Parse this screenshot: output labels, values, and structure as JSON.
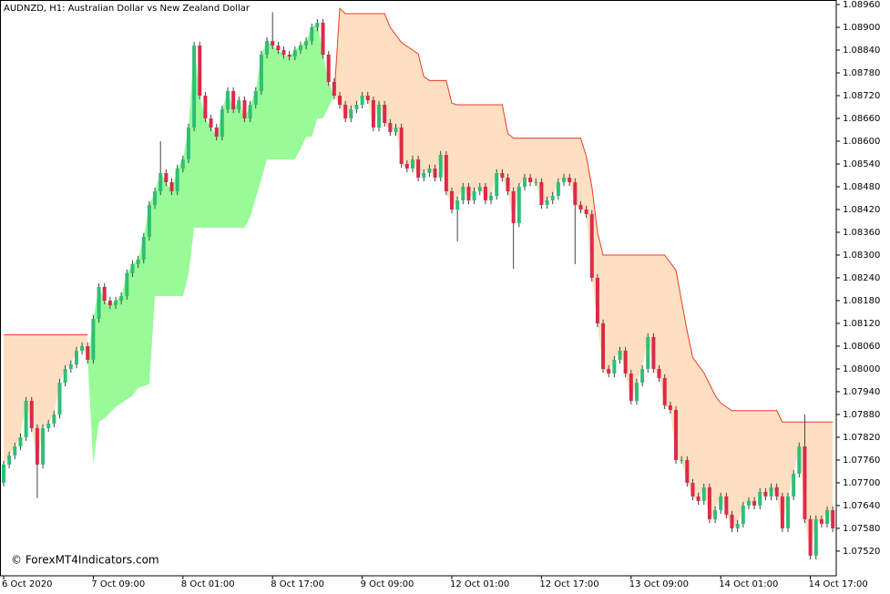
{
  "chart_data": {
    "type": "candlestick",
    "title": "AUDNZD, H1:  Australian Dollar vs New Zealand Dollar",
    "watermark": "© ForexMT4Indicators.com",
    "categories": [
      "6 Oct 2020",
      null,
      null,
      null,
      null,
      null,
      null,
      null,
      null,
      null,
      null,
      null,
      null,
      null,
      null,
      null,
      "7 Oct 09:00",
      null,
      null,
      null,
      null,
      null,
      null,
      null,
      null,
      null,
      null,
      null,
      null,
      null,
      null,
      null,
      "8 Oct 01:00",
      null,
      null,
      null,
      null,
      null,
      null,
      null,
      null,
      null,
      null,
      null,
      null,
      null,
      null,
      null,
      "8 Oct 17:00",
      null,
      null,
      null,
      null,
      null,
      null,
      null,
      null,
      null,
      null,
      null,
      null,
      null,
      null,
      null,
      "9 Oct 09:00",
      null,
      null,
      null,
      null,
      null,
      null,
      null,
      null,
      null,
      null,
      null,
      null,
      null,
      null,
      null,
      "12 Oct 01:00",
      null,
      null,
      null,
      null,
      null,
      null,
      null,
      null,
      null,
      null,
      null,
      null,
      null,
      null,
      null,
      "12 Oct 17:00",
      null,
      null,
      null,
      null,
      null,
      null,
      null,
      null,
      null,
      null,
      null,
      null,
      null,
      null,
      null,
      "13 Oct 09:00",
      null,
      null,
      null,
      null,
      null,
      null,
      null,
      null,
      null,
      null,
      null,
      null,
      null,
      null,
      null,
      "14 Oct 01:00",
      null,
      null,
      null,
      null,
      null,
      null,
      null,
      null,
      null,
      null,
      null,
      null,
      null,
      null,
      null,
      "14 Oct 17:00",
      null,
      null,
      null,
      null
    ],
    "open": [
      1.077,
      1.07748,
      1.07772,
      1.07796,
      1.0782,
      1.07916,
      1.07844,
      1.07748,
      1.07844,
      1.07856,
      1.0788,
      1.07964,
      1.08,
      1.08012,
      1.08048,
      1.0806,
      1.08024,
      1.08132,
      1.08216,
      1.0818,
      1.08168,
      1.0818,
      1.08192,
      1.08252,
      1.08276,
      1.08288,
      1.08348,
      1.08432,
      1.08468,
      1.08516,
      1.08492,
      1.08468,
      1.08528,
      1.08552,
      1.08636,
      1.08852,
      1.0872,
      1.0866,
      1.08636,
      1.08612,
      1.08684,
      1.08732,
      1.08684,
      1.08708,
      1.0866,
      1.08696,
      1.08732,
      1.08828,
      1.08864,
      1.08852,
      1.0884,
      1.08828,
      1.08823,
      1.0884,
      1.08852,
      1.08864,
      1.089,
      1.08912,
      1.08828,
      1.08756,
      1.0872,
      1.08696,
      1.0866,
      1.08684,
      1.08696,
      1.0872,
      1.08708,
      1.08636,
      1.08696,
      1.08648,
      1.08624,
      1.08636,
      1.0854,
      1.08528,
      1.08552,
      1.08504,
      1.08516,
      1.08528,
      1.08504,
      1.08564,
      1.08468,
      1.0842,
      1.08444,
      1.0848,
      1.08444,
      1.08468,
      1.0848,
      1.08444,
      1.08456,
      1.08516,
      1.08504,
      1.08468,
      1.08384,
      1.0848,
      1.08504,
      1.08492,
      1.08492,
      1.08432,
      1.08444,
      1.08456,
      1.08492,
      1.08504,
      1.08492,
      1.08432,
      1.0842,
      1.08408,
      1.0824,
      1.0812,
      1.08,
      1.07988,
      1.08024,
      1.08048,
      1.07988,
      1.07916,
      1.07964,
      1.08,
      1.08084,
      1.08,
      1.07976,
      1.07904,
      1.07892,
      1.0776,
      1.0776,
      1.077,
      1.07664,
      1.07652,
      1.07688,
      1.07604,
      1.07628,
      1.07664,
      1.07616,
      1.0758,
      1.07592,
      1.0764,
      1.07652,
      1.0764,
      1.07676,
      1.07664,
      1.07688,
      1.07664,
      1.0758,
      1.07664,
      1.07724,
      1.07796,
      1.07604,
      1.07508,
      1.07604,
      1.07592,
      1.07628
    ],
    "high": [
      1.07758,
      1.07782,
      1.07806,
      1.0783,
      1.07926,
      1.07926,
      1.07854,
      1.07854,
      1.07866,
      1.0789,
      1.07974,
      1.0801,
      1.08022,
      1.08058,
      1.0807,
      1.0807,
      1.08142,
      1.08226,
      1.08226,
      1.0819,
      1.0819,
      1.08202,
      1.08262,
      1.08286,
      1.08298,
      1.08358,
      1.08442,
      1.08478,
      1.086,
      1.08526,
      1.08502,
      1.08538,
      1.08562,
      1.08646,
      1.08862,
      1.08862,
      1.0873,
      1.0867,
      1.08646,
      1.08694,
      1.08742,
      1.08742,
      1.08718,
      1.08718,
      1.08706,
      1.08742,
      1.08838,
      1.08874,
      1.0894,
      1.08862,
      1.0885,
      1.08838,
      1.0885,
      1.08862,
      1.08874,
      1.0891,
      1.08922,
      1.08922,
      1.08838,
      1.08766,
      1.0873,
      1.08706,
      1.08694,
      1.08706,
      1.0873,
      1.0873,
      1.08718,
      1.08706,
      1.08706,
      1.08658,
      1.08646,
      1.08646,
      1.0855,
      1.08562,
      1.08562,
      1.08526,
      1.08538,
      1.08538,
      1.08574,
      1.08574,
      1.08478,
      1.08454,
      1.0849,
      1.0849,
      1.08478,
      1.0849,
      1.0849,
      1.08466,
      1.08526,
      1.08526,
      1.08514,
      1.08478,
      1.0849,
      1.08514,
      1.08514,
      1.08502,
      1.08502,
      1.08454,
      1.08466,
      1.08502,
      1.08514,
      1.08514,
      1.08502,
      1.08442,
      1.0843,
      1.08418,
      1.0825,
      1.0813,
      1.0801,
      1.08034,
      1.08058,
      1.08058,
      1.07998,
      1.07974,
      1.0801,
      1.08094,
      1.08094,
      1.0801,
      1.07986,
      1.07914,
      1.07902,
      1.0777,
      1.0777,
      1.0771,
      1.07674,
      1.07698,
      1.07698,
      1.07638,
      1.07674,
      1.07674,
      1.07626,
      1.07602,
      1.0765,
      1.07662,
      1.07662,
      1.07686,
      1.07686,
      1.07698,
      1.07698,
      1.07674,
      1.07674,
      1.07734,
      1.07806,
      1.0788,
      1.07614,
      1.07614,
      1.07614,
      1.07638,
      1.07638
    ],
    "low": [
      1.0769,
      1.07738,
      1.07762,
      1.07786,
      1.0781,
      1.07834,
      1.0766,
      1.07738,
      1.07834,
      1.07846,
      1.0787,
      1.07954,
      1.0799,
      1.08002,
      1.08038,
      1.08014,
      1.08014,
      1.08122,
      1.0817,
      1.08158,
      1.08158,
      1.0817,
      1.08182,
      1.08242,
      1.08266,
      1.08278,
      1.08338,
      1.08422,
      1.08458,
      1.08482,
      1.08458,
      1.08458,
      1.08518,
      1.08542,
      1.08626,
      1.0871,
      1.0865,
      1.08626,
      1.08602,
      1.08602,
      1.08674,
      1.08674,
      1.08674,
      1.0865,
      1.0865,
      1.08686,
      1.08722,
      1.08818,
      1.08842,
      1.0883,
      1.08818,
      1.08813,
      1.08813,
      1.0883,
      1.08842,
      1.08854,
      1.0889,
      1.08818,
      1.08746,
      1.0871,
      1.08686,
      1.0865,
      1.0865,
      1.08674,
      1.08686,
      1.08698,
      1.08626,
      1.08626,
      1.08638,
      1.08614,
      1.08614,
      1.0853,
      1.08518,
      1.08518,
      1.08494,
      1.08494,
      1.08506,
      1.08494,
      1.08494,
      1.08458,
      1.0841,
      1.08336,
      1.08434,
      1.08434,
      1.08434,
      1.08458,
      1.08434,
      1.08434,
      1.08446,
      1.08494,
      1.08458,
      1.08264,
      1.08374,
      1.0847,
      1.08482,
      1.08482,
      1.08422,
      1.08422,
      1.08434,
      1.08446,
      1.08482,
      1.08482,
      1.08276,
      1.0841,
      1.08398,
      1.0823,
      1.0811,
      1.0799,
      1.07978,
      1.07978,
      1.08014,
      1.07978,
      1.07906,
      1.07906,
      1.07954,
      1.0799,
      1.0799,
      1.07966,
      1.07894,
      1.07882,
      1.0775,
      1.0775,
      1.0769,
      1.07654,
      1.07642,
      1.07642,
      1.07594,
      1.07594,
      1.07618,
      1.07606,
      1.0757,
      1.0757,
      1.07582,
      1.0763,
      1.0763,
      1.0763,
      1.07654,
      1.07654,
      1.07654,
      1.0757,
      1.0757,
      1.07654,
      1.07714,
      1.07594,
      1.07498,
      1.07498,
      1.07582,
      1.07582,
      1.0757
    ],
    "close": [
      1.07748,
      1.07772,
      1.07796,
      1.0782,
      1.07916,
      1.07844,
      1.07748,
      1.07844,
      1.07856,
      1.0788,
      1.07964,
      1.08,
      1.08012,
      1.08048,
      1.0806,
      1.08024,
      1.08132,
      1.08216,
      1.0818,
      1.08168,
      1.0818,
      1.08192,
      1.08252,
      1.08276,
      1.08288,
      1.08348,
      1.08432,
      1.08468,
      1.08516,
      1.08492,
      1.08468,
      1.08528,
      1.08552,
      1.08636,
      1.08852,
      1.0872,
      1.0866,
      1.08636,
      1.08612,
      1.08684,
      1.08732,
      1.08684,
      1.08708,
      1.0866,
      1.08696,
      1.08732,
      1.08828,
      1.08864,
      1.08852,
      1.0884,
      1.08828,
      1.08823,
      1.0884,
      1.08852,
      1.08864,
      1.089,
      1.08912,
      1.08828,
      1.08756,
      1.0872,
      1.08696,
      1.0866,
      1.08684,
      1.08696,
      1.0872,
      1.08708,
      1.08636,
      1.08696,
      1.08648,
      1.08624,
      1.08636,
      1.0854,
      1.08528,
      1.08552,
      1.08504,
      1.08516,
      1.08528,
      1.08504,
      1.08564,
      1.08468,
      1.0842,
      1.08444,
      1.0848,
      1.08444,
      1.08468,
      1.0848,
      1.08444,
      1.08456,
      1.08516,
      1.08504,
      1.08468,
      1.08384,
      1.0848,
      1.08504,
      1.08492,
      1.08492,
      1.08432,
      1.08444,
      1.08456,
      1.08492,
      1.08504,
      1.08492,
      1.08432,
      1.0842,
      1.08408,
      1.0824,
      1.0812,
      1.08,
      1.07988,
      1.08024,
      1.08048,
      1.07988,
      1.07916,
      1.07964,
      1.08,
      1.08084,
      1.08,
      1.07976,
      1.07904,
      1.07892,
      1.0776,
      1.0776,
      1.077,
      1.07664,
      1.07652,
      1.07688,
      1.07604,
      1.07628,
      1.07664,
      1.07616,
      1.0758,
      1.07592,
      1.0764,
      1.07652,
      1.0764,
      1.07676,
      1.07664,
      1.07688,
      1.07664,
      1.0758,
      1.07664,
      1.07724,
      1.07796,
      1.07604,
      1.07508,
      1.07604,
      1.07592,
      1.07628,
      1.0758
    ],
    "upper": [
      1.0809,
      1.0809,
      1.0809,
      1.0809,
      1.0809,
      1.0809,
      1.0809,
      1.0809,
      1.0809,
      1.0809,
      1.0809,
      1.0809,
      1.0809,
      1.0809,
      1.0809,
      1.0809,
      null,
      null,
      null,
      null,
      null,
      null,
      null,
      null,
      null,
      null,
      null,
      null,
      null,
      null,
      null,
      null,
      null,
      null,
      null,
      null,
      null,
      null,
      null,
      null,
      null,
      null,
      null,
      null,
      null,
      null,
      null,
      null,
      null,
      null,
      null,
      null,
      null,
      null,
      null,
      null,
      null,
      null,
      null,
      1.0872,
      1.0895,
      1.08936,
      1.08936,
      1.08936,
      1.08936,
      1.08936,
      1.08936,
      1.08936,
      1.08936,
      1.089,
      1.0888,
      1.0886,
      1.0885,
      1.0884,
      1.0883,
      1.0877,
      1.0876,
      1.0876,
      1.0876,
      1.0876,
      1.087,
      1.08696,
      1.08696,
      1.08696,
      1.08696,
      1.08696,
      1.08696,
      1.08696,
      1.08696,
      1.08696,
      1.0862,
      1.08608,
      1.08608,
      1.08608,
      1.08608,
      1.08608,
      1.08608,
      1.08608,
      1.08608,
      1.08608,
      1.08608,
      1.08608,
      1.08608,
      1.08608,
      1.0856,
      1.0848,
      1.0836,
      1.083,
      1.083,
      1.083,
      1.083,
      1.083,
      1.083,
      1.083,
      1.083,
      1.083,
      1.083,
      1.083,
      1.083,
      1.0828,
      1.0826,
      1.0818,
      1.081,
      1.0803,
      1.0801,
      1.0799,
      1.0796,
      1.0793,
      1.0791,
      1.079,
      1.0789,
      1.0789,
      1.0789,
      1.0789,
      1.0789,
      1.0789,
      1.0789,
      1.0789,
      1.0789,
      1.0786,
      1.0786,
      1.0786,
      1.0786,
      1.0786,
      1.0786,
      1.0786,
      1.0786,
      1.0786,
      1.0786
    ],
    "lower": [
      null,
      null,
      null,
      null,
      null,
      null,
      null,
      null,
      null,
      null,
      null,
      null,
      null,
      null,
      null,
      1.08024,
      1.0775,
      1.0786,
      1.0787,
      1.07885,
      1.079,
      1.0791,
      1.0792,
      1.0793,
      1.0795,
      1.07955,
      1.0796,
      1.08192,
      1.08192,
      1.08192,
      1.08192,
      1.08192,
      1.08192,
      1.0825,
      1.08372,
      1.08372,
      1.08372,
      1.08372,
      1.08372,
      1.08372,
      1.08372,
      1.08372,
      1.08372,
      1.08372,
      1.084,
      1.0845,
      1.085,
      1.08552,
      1.08552,
      1.08552,
      1.08552,
      1.08552,
      1.08552,
      1.0858,
      1.08612,
      1.08612,
      1.0866,
      1.0866,
      1.0869,
      1.0872,
      null,
      null,
      null,
      null,
      null,
      null,
      null,
      null,
      null,
      null,
      null,
      null,
      null,
      null,
      null,
      null,
      null,
      null,
      null,
      null,
      null,
      null,
      null,
      null,
      null,
      null,
      null,
      null,
      null,
      null,
      null,
      null,
      null,
      null,
      null,
      null,
      null,
      null,
      null,
      null,
      null,
      null,
      null,
      null,
      null,
      null,
      null,
      null,
      null,
      null,
      null,
      null,
      null,
      null,
      null,
      null,
      null,
      null,
      null,
      null,
      null,
      null,
      null,
      null,
      null,
      null,
      null,
      null,
      null,
      null,
      null,
      null,
      null,
      null,
      null,
      null,
      null,
      null,
      null,
      null,
      null,
      null,
      null,
      null,
      null,
      null,
      null,
      null,
      null
    ],
    "ylim": [
      1.07455,
      1.08972
    ],
    "yticks": [
      {
        "value": 1.0752,
        "label": "1.07520"
      },
      {
        "value": 1.0758,
        "label": "1.07580"
      },
      {
        "value": 1.0764,
        "label": "1.07640"
      },
      {
        "value": 1.077,
        "label": "1.07700"
      },
      {
        "value": 1.0776,
        "label": "1.07760"
      },
      {
        "value": 1.0782,
        "label": "1.07820"
      },
      {
        "value": 1.0788,
        "label": "1.07880"
      },
      {
        "value": 1.0794,
        "label": "1.07940"
      },
      {
        "value": 1.08,
        "label": "1.08000"
      },
      {
        "value": 1.0806,
        "label": "1.08060"
      },
      {
        "value": 1.0812,
        "label": "1.08120"
      },
      {
        "value": 1.0818,
        "label": "1.08180"
      },
      {
        "value": 1.0824,
        "label": "1.08240"
      },
      {
        "value": 1.083,
        "label": "1.08300"
      },
      {
        "value": 1.0836,
        "label": "1.08360"
      },
      {
        "value": 1.0842,
        "label": "1.08420"
      },
      {
        "value": 1.0848,
        "label": "1.08480"
      },
      {
        "value": 1.0854,
        "label": "1.08540"
      },
      {
        "value": 1.086,
        "label": "1.08600"
      },
      {
        "value": 1.0866,
        "label": "1.08660"
      },
      {
        "value": 1.0872,
        "label": "1.08720"
      },
      {
        "value": 1.0878,
        "label": "1.08780"
      },
      {
        "value": 1.0884,
        "label": "1.08840"
      },
      {
        "value": 1.089,
        "label": "1.08900"
      },
      {
        "value": 1.0896,
        "label": "1.08960"
      }
    ],
    "up_color": "#2ebf74",
    "down_color": "#dc2a48",
    "upper_color": "#ec3b24",
    "upper_fill": "#ffdfc1",
    "lower_fill": "#98fb98"
  }
}
